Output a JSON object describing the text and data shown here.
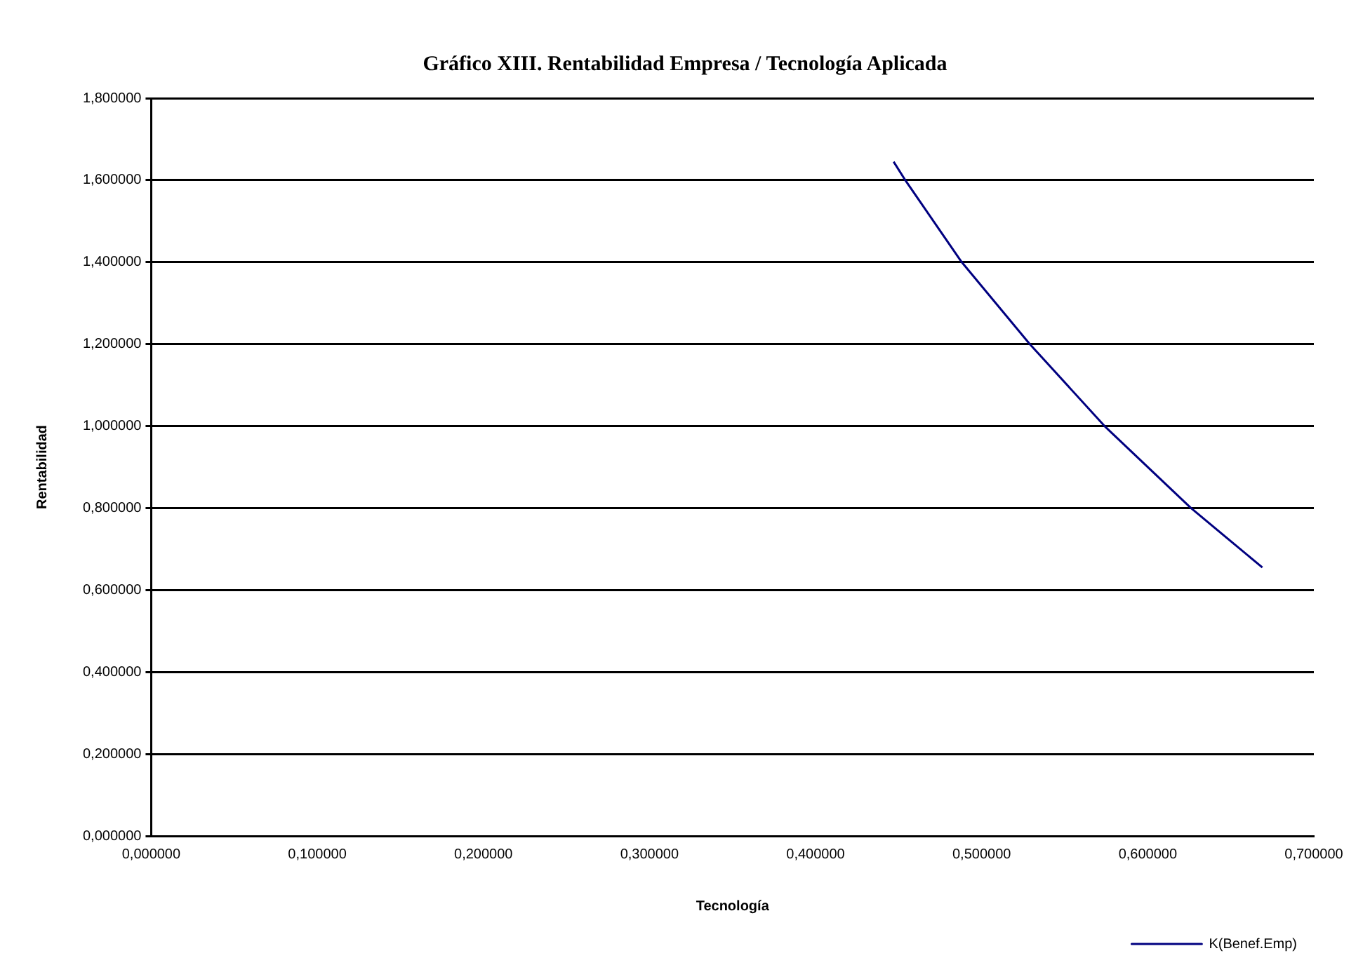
{
  "chart_data": {
    "type": "line",
    "title": "Gráfico XIII. Rentabilidad Empresa / Tecnología Aplicada",
    "xlabel": "Tecnología",
    "ylabel": "Rentabilidad",
    "series": [
      {
        "name": "K(Benef.Emp)",
        "color": "#000080",
        "x": [
          0.447,
          0.454,
          0.488,
          0.529,
          0.574,
          0.626,
          0.669
        ],
        "values": [
          1.645,
          1.6,
          1.4,
          1.2,
          1.0,
          0.8,
          0.655
        ]
      }
    ],
    "xlim": [
      0,
      0.7
    ],
    "xticks": [
      {
        "value": 0,
        "label": "0,000000"
      },
      {
        "value": 0.1,
        "label": "0,100000"
      },
      {
        "value": 0.2,
        "label": "0,200000"
      },
      {
        "value": 0.3,
        "label": "0,300000"
      },
      {
        "value": 0.4,
        "label": "0,400000"
      },
      {
        "value": 0.5,
        "label": "0,500000"
      },
      {
        "value": 0.6,
        "label": "0,600000"
      },
      {
        "value": 0.7,
        "label": "0,700000"
      }
    ],
    "ylim": [
      0,
      1.8
    ],
    "yticks": [
      {
        "value": 0,
        "label": "0,000000"
      },
      {
        "value": 0.2,
        "label": "0,200000"
      },
      {
        "value": 0.4,
        "label": "0,400000"
      },
      {
        "value": 0.6,
        "label": "0,600000"
      },
      {
        "value": 0.8,
        "label": "0,800000"
      },
      {
        "value": 1.0,
        "label": "1,000000"
      },
      {
        "value": 1.2,
        "label": "1,200000"
      },
      {
        "value": 1.4,
        "label": "1,400000"
      },
      {
        "value": 1.6,
        "label": "1,600000"
      },
      {
        "value": 1.8,
        "label": "1,800000"
      }
    ],
    "grid": "y",
    "legend": "bottom right",
    "marker": "none",
    "line_style": "solid"
  }
}
